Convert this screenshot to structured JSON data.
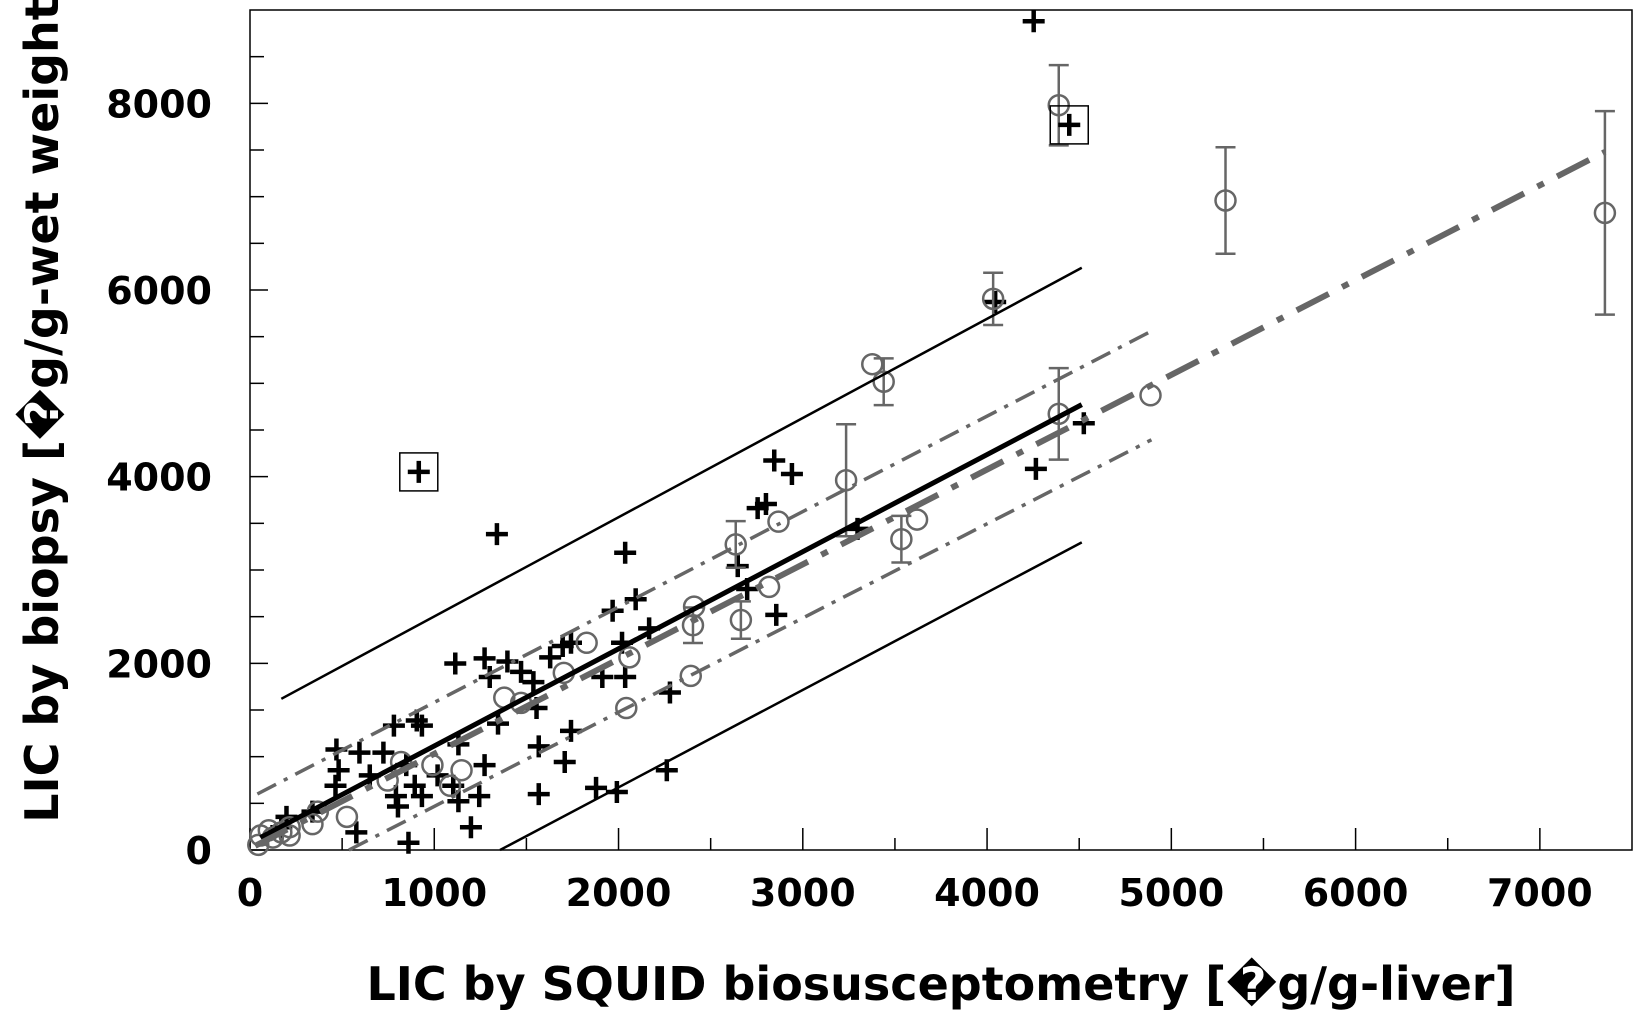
{
  "chart_data": {
    "type": "scatter",
    "x_label": "LIC by SQUID biosusceptometry [�g/g-liver]",
    "y_label": "LIC by biopsy [�g/g-wet weight]",
    "xlim": [
      0,
      7500
    ],
    "ylim": [
      0,
      9000
    ],
    "xticks": [
      0,
      1000,
      2000,
      3000,
      4000,
      5000,
      6000,
      7000
    ],
    "yticks": [
      0,
      2000,
      4000,
      6000,
      8000
    ],
    "x_minor_ticks": [
      500,
      1500,
      2500,
      3500,
      4500,
      5500,
      6500
    ],
    "y_minor_ticks": [
      500,
      1000,
      1500,
      2500,
      3000,
      3500,
      4500,
      5000,
      5500,
      6500,
      7000,
      7500,
      8500
    ],
    "series": [
      {
        "type": "scatter",
        "marker": "+",
        "color": "#000000",
        "x": [
          4253,
          4044,
          4525,
          4265,
          1340,
          2036,
          2845,
          2941,
          2755,
          2800,
          1968,
          2093,
          2166,
          2698,
          2647,
          2856,
          3297,
          1114,
          1273,
          1301,
          1397,
          1471,
          1538,
          1629,
          1697,
          1742,
          1555,
          1346,
          2019,
          2036,
          1912,
          2279,
          2262,
          1742,
          1567,
          1708,
          1878,
          1991,
          1567,
          1273,
          1244,
          1199,
          933,
          905,
          781,
          469,
          594,
          724,
          650,
          481,
          464,
          577,
          792,
          803,
          860,
          894,
          933,
          1018,
          1103,
          1131,
          848,
          1131,
          198,
          170,
          339
        ],
        "y": [
          8879,
          5871,
          4572,
          4084,
          3385,
          3185,
          4173,
          4029,
          3663,
          3707,
          2564,
          2686,
          2375,
          2797,
          3041,
          2519,
          3441,
          1998,
          2053,
          1853,
          2020,
          1909,
          1798,
          2064,
          2186,
          2220,
          1521,
          1354,
          2220,
          1853,
          1853,
          1687,
          855,
          1276,
          1110,
          943,
          666,
          622,
          599,
          910,
          577,
          244,
          1332,
          1387,
          1332,
          1077,
          1043,
          1043,
          799,
          855,
          688,
          189,
          577,
          466,
          78,
          688,
          577,
          799,
          688,
          1132,
          910,
          522,
          355,
          244,
          411
        ]
      },
      {
        "type": "scatter",
        "marker": "o",
        "color": "#666666",
        "x": [
          4389,
          5294,
          7353,
          4033,
          3377,
          3439,
          4389,
          3235,
          3535,
          3620,
          4887,
          2636,
          2868,
          2664,
          2817,
          2410,
          2404,
          2392,
          2059,
          2042,
          1827,
          1703,
          1380,
          1471,
          1148,
          1086,
          990,
          820,
          747,
          526,
          368,
          339,
          215,
          170,
          102,
          45,
          124,
          57,
          215
        ],
        "y": [
          7980,
          6959,
          6826,
          5905,
          5205,
          5017,
          4673,
          3962,
          3330,
          3540,
          4872,
          3274,
          3518,
          2464,
          2819,
          2608,
          2408,
          1865,
          2064,
          1521,
          2220,
          1898,
          1632,
          1576,
          855,
          688,
          910,
          943,
          744,
          355,
          411,
          277,
          244,
          189,
          211,
          55,
          133,
          155,
          155
        ],
        "errors": [
          430,
          570,
          1090,
          280,
          null,
          250,
          490,
          600,
          250,
          null,
          null,
          250,
          null,
          200,
          null,
          null,
          190,
          null,
          null,
          null,
          null,
          null,
          null,
          null,
          null,
          null,
          null,
          null,
          null,
          null,
          null,
          null,
          null,
          null,
          null,
          null,
          null,
          null,
          null
        ]
      },
      {
        "type": "scatter",
        "marker": "boxed+",
        "color": "#000000",
        "x": [
          916,
          4446
        ],
        "y": [
          4051,
          7769
        ]
      },
      {
        "type": "line",
        "style": "solid",
        "width": 2.5,
        "color": "#000000",
        "x": [
          170,
          4514
        ],
        "y": [
          1620,
          6238
        ]
      },
      {
        "type": "line",
        "style": "solid",
        "width": 2.5,
        "color": "#000000",
        "x": [
          1357,
          4514
        ],
        "y": [
          0,
          3296
        ]
      },
      {
        "type": "line",
        "style": "solid",
        "width": 5,
        "color": "#000000",
        "x": [
          57,
          4514
        ],
        "y": [
          133,
          4772
        ]
      },
      {
        "type": "line",
        "style": "dashdot",
        "width": 3.5,
        "color": "#666666",
        "x": [
          40,
          4892
        ],
        "y": [
          600,
          5560
        ]
      },
      {
        "type": "line",
        "style": "dashdot",
        "width": 3.5,
        "color": "#666666",
        "x": [
          537,
          4892
        ],
        "y": [
          0,
          4395
        ]
      },
      {
        "type": "line",
        "style": "dashdot",
        "width": 6,
        "color": "#666666",
        "x": [
          28,
          7353
        ],
        "y": [
          44,
          7480
        ]
      }
    ]
  }
}
